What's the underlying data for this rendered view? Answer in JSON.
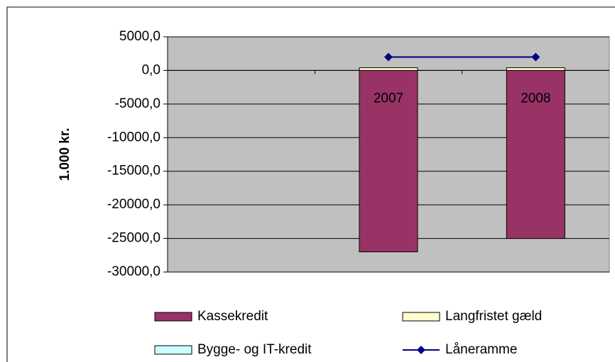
{
  "chart_data": {
    "type": "stacked_bar_line",
    "y_axis_label": "1.000 kr.",
    "categories": [
      null,
      "2007",
      "2008"
    ],
    "series": [
      {
        "name": "Kassekredit",
        "type": "bar",
        "color": "#993366",
        "values": [
          null,
          -27000,
          -25000
        ]
      },
      {
        "name": "Langfristet gæld",
        "type": "bar",
        "color": "#ffffcc",
        "values": [
          null,
          400,
          400
        ]
      },
      {
        "name": "Bygge- og IT-kredit",
        "type": "bar",
        "color": "#ccffff",
        "values": [
          null,
          0,
          0
        ]
      },
      {
        "name": "Låneramme",
        "type": "line",
        "color": "#000080",
        "values": [
          null,
          2000,
          2000
        ]
      }
    ],
    "ylim": [
      -30000,
      5000
    ],
    "yticks": [
      {
        "value": 5000,
        "label": "5000,0"
      },
      {
        "value": 0,
        "label": "0,0"
      },
      {
        "value": -5000,
        "label": "-5000,0"
      },
      {
        "value": -10000,
        "label": "-10000,0"
      },
      {
        "value": -15000,
        "label": "-15000,0"
      },
      {
        "value": -20000,
        "label": "-20000,0"
      },
      {
        "value": -25000,
        "label": "-25000,0"
      },
      {
        "value": -30000,
        "label": "-30000,0"
      }
    ],
    "grid": true,
    "legend": "bottom"
  }
}
